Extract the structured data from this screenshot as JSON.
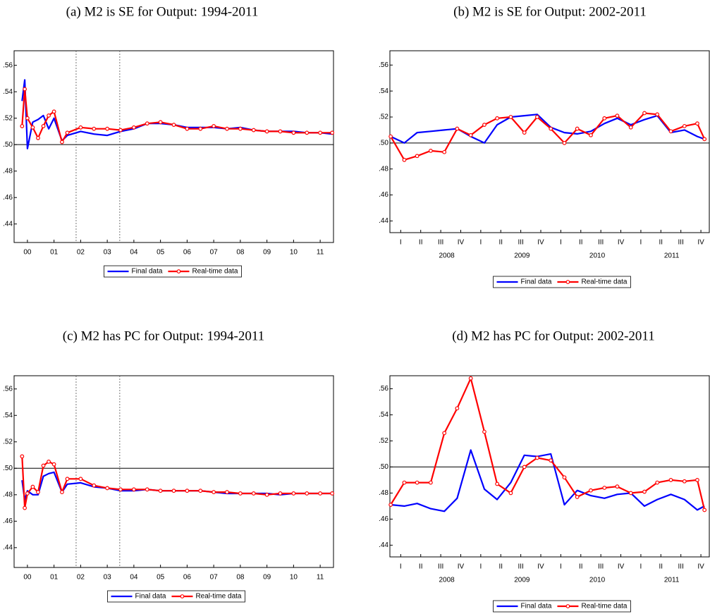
{
  "chart_data": [
    {
      "type": "line",
      "title": "(a) M2 is SE for Output: 1994-2011",
      "x": [
        2000.3,
        2000.4,
        2000.5,
        2000.7,
        2000.9,
        2001.1,
        2001.3,
        2001.5,
        2001.8,
        2002.0,
        2002.5,
        2003.0,
        2003.5,
        2004.0,
        2004.5,
        2005.0,
        2005.5,
        2006.0,
        2006.5,
        2007.0,
        2007.5,
        2008.0,
        2008.5,
        2009.0,
        2009.5,
        2010.0,
        2010.5,
        2011.0,
        2011.5,
        2011.95
      ],
      "series": [
        {
          "name": "Final data",
          "color": "#0000ff",
          "values": [
            0.533,
            0.549,
            0.497,
            0.517,
            0.519,
            0.522,
            0.512,
            0.52,
            0.503,
            0.507,
            0.51,
            0.508,
            0.507,
            0.51,
            0.512,
            0.516,
            0.516,
            0.515,
            0.513,
            0.513,
            0.513,
            0.512,
            0.513,
            0.511,
            0.51,
            0.51,
            0.51,
            0.509,
            0.509,
            0.508
          ]
        },
        {
          "name": "Real-time data",
          "color": "#ff0000",
          "markers": true,
          "values": [
            0.514,
            0.542,
            0.52,
            0.513,
            0.505,
            0.514,
            0.522,
            0.525,
            0.502,
            0.509,
            0.513,
            0.512,
            0.512,
            0.511,
            0.513,
            0.516,
            0.517,
            0.515,
            0.512,
            0.512,
            0.514,
            0.512,
            0.512,
            0.511,
            0.51,
            0.51,
            0.509,
            0.509,
            0.509,
            0.509
          ]
        }
      ],
      "xlim": [
        2000.0,
        2012.0
      ],
      "ylim": [
        0.426,
        0.571
      ],
      "xticks": [
        {
          "value": 2000.5,
          "label": "00"
        },
        {
          "value": 2001.5,
          "label": "01"
        },
        {
          "value": 2002.5,
          "label": "02"
        },
        {
          "value": 2003.5,
          "label": "03"
        },
        {
          "value": 2004.5,
          "label": "04"
        },
        {
          "value": 2005.5,
          "label": "05"
        },
        {
          "value": 2006.5,
          "label": "06"
        },
        {
          "value": 2007.5,
          "label": "07"
        },
        {
          "value": 2008.5,
          "label": "08"
        },
        {
          "value": 2009.5,
          "label": "09"
        },
        {
          "value": 2010.5,
          "label": "10"
        },
        {
          "value": 2011.5,
          "label": "11"
        }
      ],
      "yticks": [
        {
          "value": 0.44,
          "label": ".44"
        },
        {
          "value": 0.46,
          "label": ".46"
        },
        {
          "value": 0.48,
          "label": ".48"
        },
        {
          "value": 0.5,
          "label": ".50"
        },
        {
          "value": 0.52,
          "label": ".52"
        },
        {
          "value": 0.54,
          "label": ".54"
        },
        {
          "value": 0.56,
          "label": ".56"
        }
      ],
      "hline": 0.5,
      "vlines": [
        2002.33,
        2003.97
      ]
    },
    {
      "type": "line",
      "title": "(b) M2 is SE for Output: 2002-2011",
      "x": [
        2008.0,
        2008.17,
        2008.33,
        2008.5,
        2008.67,
        2008.83,
        2009.0,
        2009.17,
        2009.33,
        2009.5,
        2009.67,
        2009.83,
        2010.0,
        2010.17,
        2010.33,
        2010.5,
        2010.67,
        2010.83,
        2011.0,
        2011.17,
        2011.33,
        2011.5,
        2011.67,
        2011.83,
        2011.92
      ],
      "series": [
        {
          "name": "Final data",
          "color": "#0000ff",
          "values": [
            0.505,
            0.5,
            0.508,
            0.509,
            0.51,
            0.511,
            0.505,
            0.5,
            0.514,
            0.52,
            0.521,
            0.522,
            0.512,
            0.508,
            0.507,
            0.509,
            0.515,
            0.519,
            0.514,
            0.518,
            0.521,
            0.508,
            0.51,
            0.505,
            0.503
          ]
        },
        {
          "name": "Real-time data",
          "color": "#ff0000",
          "markers": true,
          "values": [
            0.505,
            0.487,
            0.49,
            0.494,
            0.493,
            0.511,
            0.506,
            0.514,
            0.519,
            0.52,
            0.508,
            0.52,
            0.511,
            0.5,
            0.511,
            0.506,
            0.519,
            0.521,
            0.512,
            0.523,
            0.522,
            0.509,
            0.513,
            0.515,
            0.503
          ]
        }
      ],
      "xlim": [
        2007.99,
        2011.98
      ],
      "ylim": [
        0.431,
        0.571
      ],
      "xticks": [
        {
          "value": 2008.125,
          "label": "I"
        },
        {
          "value": 2008.375,
          "label": "II"
        },
        {
          "value": 2008.625,
          "label": "III"
        },
        {
          "value": 2008.875,
          "label": "IV"
        },
        {
          "value": 2009.125,
          "label": "I"
        },
        {
          "value": 2009.375,
          "label": "II"
        },
        {
          "value": 2009.625,
          "label": "III"
        },
        {
          "value": 2009.875,
          "label": "IV"
        },
        {
          "value": 2010.125,
          "label": "I"
        },
        {
          "value": 2010.375,
          "label": "II"
        },
        {
          "value": 2010.625,
          "label": "III"
        },
        {
          "value": 2010.875,
          "label": "IV"
        },
        {
          "value": 2011.125,
          "label": "I"
        },
        {
          "value": 2011.375,
          "label": "II"
        },
        {
          "value": 2011.625,
          "label": "III"
        },
        {
          "value": 2011.875,
          "label": "IV"
        }
      ],
      "xgroups": [
        {
          "value": 2008.7,
          "label": "2008"
        },
        {
          "value": 2009.64,
          "label": "2009"
        },
        {
          "value": 2010.58,
          "label": "2010"
        },
        {
          "value": 2011.51,
          "label": "2011"
        }
      ],
      "yticks": [
        {
          "value": 0.44,
          "label": ".44"
        },
        {
          "value": 0.46,
          "label": ".46"
        },
        {
          "value": 0.48,
          "label": ".48"
        },
        {
          "value": 0.5,
          "label": ".50"
        },
        {
          "value": 0.52,
          "label": ".52"
        },
        {
          "value": 0.54,
          "label": ".54"
        },
        {
          "value": 0.56,
          "label": ".56"
        }
      ],
      "hline": 0.5
    },
    {
      "type": "line",
      "title": "(c) M2 has PC for Output: 1994-2011",
      "x": [
        2000.3,
        2000.4,
        2000.5,
        2000.7,
        2000.9,
        2001.1,
        2001.3,
        2001.5,
        2001.8,
        2002.0,
        2002.5,
        2003.0,
        2003.5,
        2004.0,
        2004.5,
        2005.0,
        2005.5,
        2006.0,
        2006.5,
        2007.0,
        2007.5,
        2008.0,
        2008.5,
        2009.0,
        2009.5,
        2010.0,
        2010.5,
        2011.0,
        2011.5,
        2011.95
      ],
      "series": [
        {
          "name": "Final data",
          "color": "#0000ff",
          "values": [
            0.491,
            0.476,
            0.483,
            0.48,
            0.48,
            0.494,
            0.496,
            0.497,
            0.482,
            0.488,
            0.489,
            0.486,
            0.485,
            0.483,
            0.483,
            0.484,
            0.483,
            0.483,
            0.483,
            0.483,
            0.482,
            0.481,
            0.481,
            0.481,
            0.481,
            0.48,
            0.481,
            0.481,
            0.481,
            0.481
          ]
        },
        {
          "name": "Real-time data",
          "color": "#ff0000",
          "markers": true,
          "values": [
            0.509,
            0.47,
            0.481,
            0.486,
            0.482,
            0.502,
            0.505,
            0.503,
            0.482,
            0.492,
            0.492,
            0.487,
            0.485,
            0.484,
            0.484,
            0.484,
            0.483,
            0.483,
            0.483,
            0.483,
            0.482,
            0.482,
            0.481,
            0.481,
            0.48,
            0.481,
            0.481,
            0.481,
            0.481,
            0.481
          ]
        }
      ],
      "xlim": [
        2000.0,
        2012.0
      ],
      "ylim": [
        0.425,
        0.57
      ],
      "xticks": [
        {
          "value": 2000.5,
          "label": "00"
        },
        {
          "value": 2001.5,
          "label": "01"
        },
        {
          "value": 2002.5,
          "label": "02"
        },
        {
          "value": 2003.5,
          "label": "03"
        },
        {
          "value": 2004.5,
          "label": "04"
        },
        {
          "value": 2005.5,
          "label": "05"
        },
        {
          "value": 2006.5,
          "label": "06"
        },
        {
          "value": 2007.5,
          "label": "07"
        },
        {
          "value": 2008.5,
          "label": "08"
        },
        {
          "value": 2009.5,
          "label": "09"
        },
        {
          "value": 2010.5,
          "label": "10"
        },
        {
          "value": 2011.5,
          "label": "11"
        }
      ],
      "yticks": [
        {
          "value": 0.44,
          "label": ".44"
        },
        {
          "value": 0.46,
          "label": ".46"
        },
        {
          "value": 0.48,
          "label": ".48"
        },
        {
          "value": 0.5,
          "label": ".50"
        },
        {
          "value": 0.52,
          "label": ".52"
        },
        {
          "value": 0.54,
          "label": ".54"
        },
        {
          "value": 0.56,
          "label": ".56"
        }
      ],
      "hline": 0.5,
      "vlines": [
        2002.33,
        2003.97
      ]
    },
    {
      "type": "line",
      "title": "(d) M2 has PC for Output: 2002-2011",
      "x": [
        2008.0,
        2008.17,
        2008.33,
        2008.5,
        2008.67,
        2008.83,
        2009.0,
        2009.17,
        2009.33,
        2009.5,
        2009.67,
        2009.83,
        2010.0,
        2010.17,
        2010.33,
        2010.5,
        2010.67,
        2010.83,
        2011.0,
        2011.17,
        2011.33,
        2011.5,
        2011.67,
        2011.83,
        2011.92
      ],
      "series": [
        {
          "name": "Final data",
          "color": "#0000ff",
          "values": [
            0.471,
            0.47,
            0.472,
            0.468,
            0.466,
            0.476,
            0.513,
            0.483,
            0.475,
            0.488,
            0.509,
            0.508,
            0.51,
            0.471,
            0.482,
            0.478,
            0.476,
            0.479,
            0.48,
            0.47,
            0.475,
            0.479,
            0.475,
            0.467,
            0.47
          ]
        },
        {
          "name": "Real-time data",
          "color": "#ff0000",
          "markers": true,
          "values": [
            0.471,
            0.488,
            0.488,
            0.488,
            0.526,
            0.545,
            0.568,
            0.527,
            0.487,
            0.48,
            0.5,
            0.507,
            0.505,
            0.492,
            0.477,
            0.482,
            0.484,
            0.485,
            0.48,
            0.481,
            0.488,
            0.49,
            0.489,
            0.49,
            0.467
          ]
        }
      ],
      "xlim": [
        2007.99,
        2011.98
      ],
      "ylim": [
        0.431,
        0.57
      ],
      "xticks": [
        {
          "value": 2008.125,
          "label": "I"
        },
        {
          "value": 2008.375,
          "label": "II"
        },
        {
          "value": 2008.625,
          "label": "III"
        },
        {
          "value": 2008.875,
          "label": "IV"
        },
        {
          "value": 2009.125,
          "label": "I"
        },
        {
          "value": 2009.375,
          "label": "II"
        },
        {
          "value": 2009.625,
          "label": "III"
        },
        {
          "value": 2009.875,
          "label": "IV"
        },
        {
          "value": 2010.125,
          "label": "I"
        },
        {
          "value": 2010.375,
          "label": "II"
        },
        {
          "value": 2010.625,
          "label": "III"
        },
        {
          "value": 2010.875,
          "label": "IV"
        },
        {
          "value": 2011.125,
          "label": "I"
        },
        {
          "value": 2011.375,
          "label": "II"
        },
        {
          "value": 2011.625,
          "label": "III"
        },
        {
          "value": 2011.875,
          "label": "IV"
        }
      ],
      "xgroups": [
        {
          "value": 2008.7,
          "label": "2008"
        },
        {
          "value": 2009.64,
          "label": "2009"
        },
        {
          "value": 2010.58,
          "label": "2010"
        },
        {
          "value": 2011.51,
          "label": "2011"
        }
      ],
      "yticks": [
        {
          "value": 0.44,
          "label": ".44"
        },
        {
          "value": 0.46,
          "label": ".46"
        },
        {
          "value": 0.48,
          "label": ".48"
        },
        {
          "value": 0.5,
          "label": ".50"
        },
        {
          "value": 0.52,
          "label": ".52"
        },
        {
          "value": 0.54,
          "label": ".54"
        },
        {
          "value": 0.56,
          "label": ".56"
        }
      ],
      "hline": 0.5
    }
  ]
}
